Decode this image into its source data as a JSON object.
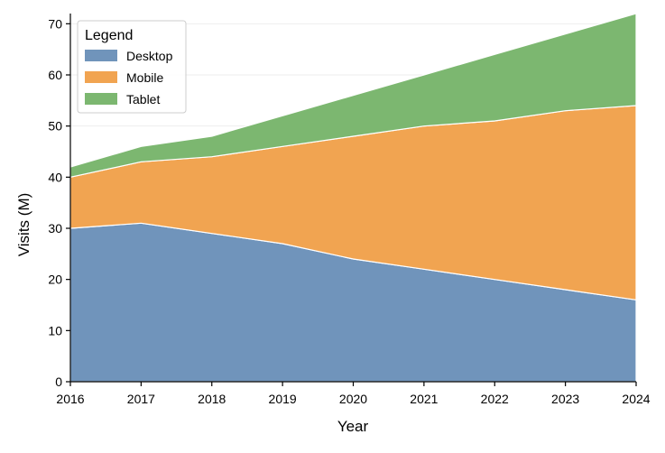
{
  "chart_data": {
    "type": "area",
    "stacked": true,
    "x": [
      2016,
      2017,
      2018,
      2019,
      2020,
      2021,
      2022,
      2023,
      2024
    ],
    "series": [
      {
        "name": "Desktop",
        "values": [
          30,
          31,
          29,
          27,
          24,
          22,
          20,
          18,
          16
        ],
        "color": "#7094bb"
      },
      {
        "name": "Mobile",
        "values": [
          10,
          12,
          15,
          19,
          24,
          28,
          31,
          35,
          38
        ],
        "color": "#f1a451"
      },
      {
        "name": "Tablet",
        "values": [
          2,
          3,
          4,
          6,
          8,
          10,
          13,
          15,
          18
        ],
        "color": "#7cb770"
      }
    ],
    "xlabel": "Year",
    "ylabel": "Visits (M)",
    "xlim": [
      2016,
      2024
    ],
    "ylim": [
      0,
      72
    ],
    "yticks": [
      0,
      10,
      20,
      30,
      40,
      50,
      60,
      70
    ],
    "grid": "horizontal-light",
    "legend": {
      "title": "Legend",
      "placement": "top-left"
    }
  }
}
